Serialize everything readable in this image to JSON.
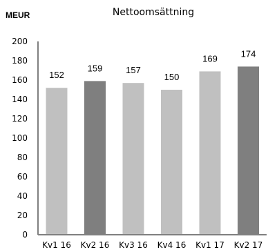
{
  "chart_data": {
    "type": "bar",
    "title": "Nettoomsättning",
    "unit_label": "MEUR",
    "categories": [
      "Kv1 16",
      "Kv2 16",
      "Kv3 16",
      "Kv4 16",
      "Kv1 17",
      "Kv2 17"
    ],
    "values": [
      152,
      159,
      157,
      150,
      169,
      174
    ],
    "data_labels": [
      "152",
      "159",
      "157",
      "150",
      "169",
      "174"
    ],
    "highlighted": [
      false,
      true,
      false,
      false,
      false,
      true
    ],
    "yticks": [
      0,
      20,
      40,
      60,
      80,
      100,
      120,
      140,
      160,
      180,
      200
    ],
    "ytick_labels": [
      "0",
      "20",
      "40",
      "60",
      "80",
      "100",
      "120",
      "140",
      "160",
      "180",
      "200"
    ],
    "ylim": [
      0,
      200
    ],
    "grid": false,
    "legend": "none",
    "colors": {
      "bar": "#c0c0c0",
      "bar_highlight": "#7f7f7f",
      "axis": "#7f7f7f"
    }
  }
}
